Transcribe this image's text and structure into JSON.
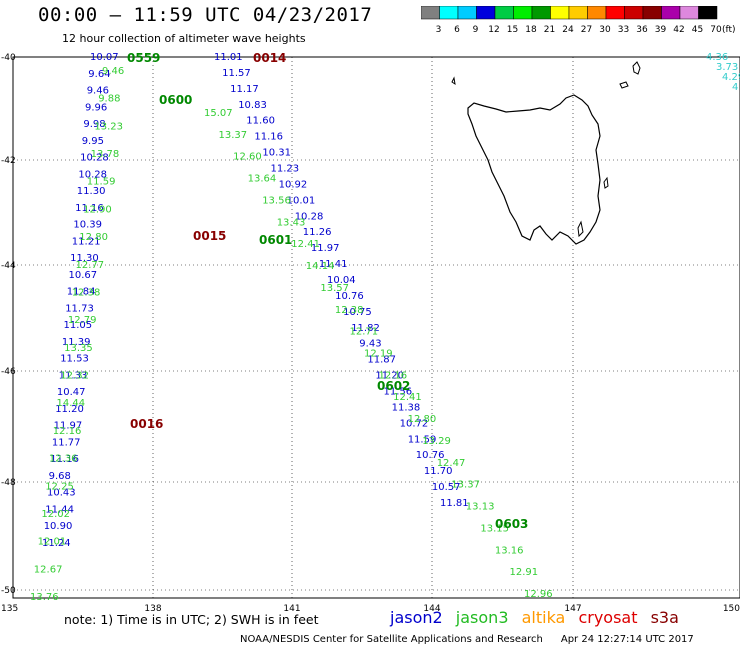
{
  "title": "00:00 – 11:59 UTC 04/23/2017",
  "subtitle": "12 hour collection of altimeter wave heights",
  "note": "note:  1) Time is in UTC; 2) SWH is in feet",
  "credit": "NOAA/NESDIS Center for Satellite Applications and Research",
  "timestamp": "Apr 24 12:27:14 UTC 2017",
  "satellites": [
    {
      "name": "jason2",
      "color": "#0000cc"
    },
    {
      "name": "jason3",
      "color": "#22bb22"
    },
    {
      "name": "altika",
      "color": "#ff9900"
    },
    {
      "name": "cryosat",
      "color": "#dd0000"
    },
    {
      "name": "s3a",
      "color": "#880000"
    }
  ],
  "colorbar": {
    "unit": "(ft)",
    "labels": [
      "3",
      "6",
      "9",
      "12",
      "15",
      "18",
      "21",
      "24",
      "27",
      "30",
      "33",
      "36",
      "39",
      "42",
      "45",
      "70"
    ],
    "colors": [
      "#808080",
      "#00ffff",
      "#00ccff",
      "#0000dd",
      "#00cc44",
      "#00ee00",
      "#009900",
      "#ffff00",
      "#ffcc00",
      "#ff8800",
      "#ff0000",
      "#cc0000",
      "#880000",
      "#aa00aa",
      "#dd88dd",
      "#000000"
    ]
  },
  "lat_ticks": [
    "-40",
    "-42",
    "-44",
    "-46",
    "-48",
    "-50"
  ],
  "lon_ticks": [
    "135",
    "138",
    "141",
    "144",
    "147",
    "150"
  ],
  "time_marks": [
    {
      "label": "0559",
      "color": "green"
    },
    {
      "label": "0014",
      "color": "darkred"
    },
    {
      "label": "0600",
      "color": "green"
    },
    {
      "label": "0015",
      "color": "darkred"
    },
    {
      "label": "0601",
      "color": "green"
    },
    {
      "label": "0602",
      "color": "green"
    },
    {
      "label": "0016",
      "color": "darkred"
    },
    {
      "label": "0603",
      "color": "green"
    }
  ],
  "edge_obs": [
    "4.36",
    "3.73",
    "4.29",
    "4"
  ],
  "tracks": {
    "jason2_desc": [
      "10.07",
      "9.64",
      "9.46",
      "9.96",
      "9.98",
      "9.95",
      "10.28",
      "10.28",
      "11.30",
      "11.16",
      "10.39",
      "11.21",
      "11.30",
      "10.67",
      "11.84",
      "11.73",
      "11.05",
      "11.39",
      "11.53",
      "11.33",
      "10.47",
      "11.20",
      "11.97",
      "11.77",
      "11.16",
      "9.68",
      "10.43",
      "11.44",
      "10.90",
      "11.24"
    ],
    "jason3_desc": [
      "9.46",
      "9.88",
      "13.23",
      "13.78",
      "11.59",
      "12.90",
      "12.80",
      "12.77",
      "12.38",
      "12.79",
      "13.35",
      "12.32",
      "14.44",
      "12.16",
      "12.36",
      "12.25",
      "12.02",
      "12.01",
      "12.67",
      "13.76"
    ],
    "jason2_asc": [
      "11.01",
      "11.57",
      "11.17",
      "10.83",
      "11.60",
      "11.16",
      "10.31",
      "11.23",
      "10.92",
      "10.01",
      "10.28",
      "11.26",
      "11.97",
      "11.41",
      "10.04",
      "10.76",
      "10.75",
      "11.82",
      "9.43",
      "11.87",
      "11.20",
      "11.56",
      "11.38",
      "10.72",
      "11.59",
      "10.76",
      "11.70",
      "10.57",
      "11.81"
    ],
    "jason3_asc": [
      "15.07",
      "13.37",
      "12.60",
      "13.64",
      "13.56",
      "13.43",
      "12.41",
      "14.14",
      "13.57",
      "12.38",
      "12.71",
      "12.19",
      "12.16",
      "12.41",
      "12.80",
      "13.29",
      "12.47",
      "13.37",
      "13.13",
      "13.15",
      "13.16",
      "12.91",
      "12.96"
    ]
  }
}
